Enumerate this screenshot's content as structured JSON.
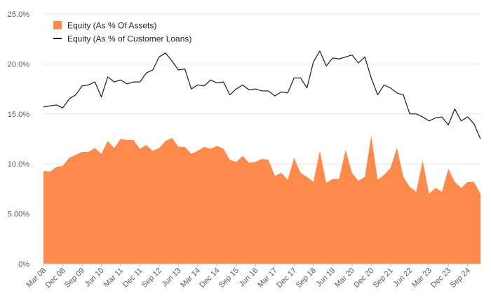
{
  "chart_data": {
    "type": "area",
    "y_tick_labels": [
      "0%",
      "5.00%",
      "10.0%",
      "15.0%",
      "20.0%",
      "25.0%"
    ],
    "y_tick_values": [
      0,
      5,
      10,
      15,
      20,
      25
    ],
    "ylim": [
      0,
      25
    ],
    "grid": true,
    "legend_position": "top-left",
    "x_tick_labels": [
      "Mar 08",
      "Dec 08",
      "Sep 09",
      "Jun 10",
      "Mar 11",
      "Dec 11",
      "Sep 12",
      "Jun 13",
      "Mar 14",
      "Dec 14",
      "Sep 15",
      "Jun 16",
      "Mar 17",
      "Dec 17",
      "Sep 18",
      "Jun 19",
      "Mar 20",
      "Dec 20",
      "Sep 21",
      "Jun 22",
      "Mar 23",
      "Dec 23",
      "Sep 24"
    ],
    "x_tick_every": 3,
    "series": [
      {
        "name": "Equity (As % Of Assets)",
        "kind": "area",
        "color": "#ff8a4c",
        "values": [
          9.3,
          9.2,
          9.7,
          9.8,
          10.6,
          10.9,
          11.2,
          11.2,
          11.6,
          11.0,
          12.3,
          11.6,
          12.5,
          12.4,
          12.4,
          11.5,
          11.9,
          11.3,
          11.6,
          12.3,
          12.6,
          11.7,
          11.7,
          11.0,
          11.3,
          11.7,
          11.5,
          11.8,
          11.5,
          10.4,
          10.2,
          10.8,
          10.1,
          10.2,
          10.5,
          10.4,
          8.8,
          9.1,
          8.4,
          10.6,
          9.1,
          8.7,
          8.2,
          11.3,
          8.1,
          8.5,
          8.5,
          11.4,
          9.1,
          8.3,
          8.7,
          12.8,
          8.4,
          8.9,
          9.6,
          11.6,
          8.7,
          7.7,
          7.2,
          10.3,
          7.0,
          7.6,
          7.2,
          9.5,
          8.2,
          7.6,
          8.2,
          8.2,
          7.0
        ]
      },
      {
        "name": "Equity (As % of Customer Loans)",
        "kind": "line",
        "color": "#1a1a1a",
        "values": [
          15.7,
          15.8,
          15.9,
          15.6,
          16.5,
          16.9,
          17.8,
          17.9,
          18.2,
          16.7,
          18.7,
          18.2,
          18.4,
          18.0,
          18.2,
          18.2,
          19.1,
          19.4,
          20.7,
          21.1,
          20.3,
          19.4,
          19.5,
          17.5,
          17.9,
          17.8,
          18.4,
          18.1,
          18.2,
          16.9,
          17.5,
          17.9,
          17.4,
          17.5,
          17.3,
          17.3,
          16.8,
          17.2,
          17.1,
          18.6,
          18.6,
          17.6,
          20.2,
          21.3,
          19.8,
          20.6,
          20.5,
          20.7,
          20.9,
          20.1,
          20.7,
          18.6,
          16.9,
          17.9,
          17.6,
          17.1,
          16.9,
          15.0,
          15.0,
          14.7,
          14.3,
          14.6,
          14.7,
          13.9,
          15.5,
          14.3,
          14.7,
          14.0,
          12.5
        ]
      }
    ]
  }
}
